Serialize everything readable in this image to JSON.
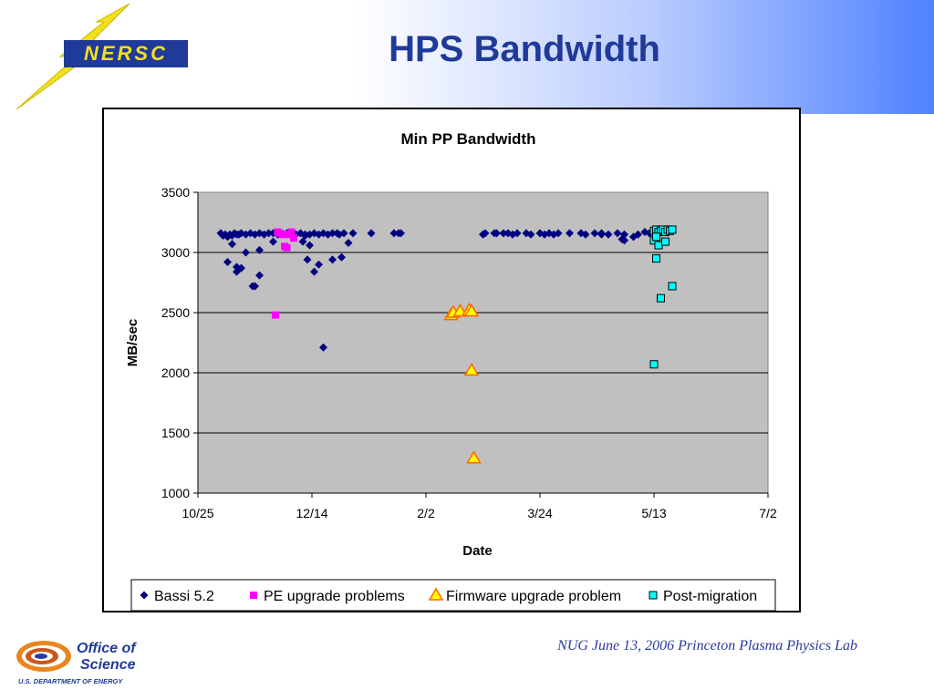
{
  "slide": {
    "title": "HPS Bandwidth",
    "footer": "NUG June 13, 2006 Princeton Plasma Physics Lab"
  },
  "logos": {
    "nersc": "NERSC",
    "office_line1": "Office of",
    "office_line2": "Science",
    "office_line3": "U.S. DEPARTMENT OF ENERGY"
  },
  "colors": {
    "title": "#1f3a99",
    "plot_bg": "#c0c0c0",
    "series": [
      "#000080",
      "#ff00ff",
      "#ffff00",
      "#00ffff"
    ]
  },
  "chart_data": {
    "type": "scatter",
    "title": "Min PP Bandwidth",
    "xlabel": "Date",
    "ylabel": "MB/sec",
    "ylim": [
      1000,
      3500
    ],
    "yticks": [
      1000,
      1500,
      2000,
      2500,
      3000,
      3500
    ],
    "xlim": [
      "10/25",
      "7/2"
    ],
    "xticks": [
      "10/25",
      "12/14",
      "2/2",
      "3/24",
      "5/13",
      "7/2"
    ],
    "grid": "horizontal",
    "legend_position": "bottom",
    "series": [
      {
        "name": "Bassi 5.2",
        "marker": "diamond",
        "x": [
          "11/4",
          "11/5",
          "11/6",
          "11/7",
          "11/8",
          "11/9",
          "11/10",
          "11/11",
          "11/12",
          "11/13",
          "11/15",
          "11/17",
          "11/19",
          "11/21",
          "11/23",
          "11/25",
          "11/27",
          "11/29",
          "12/1",
          "12/3",
          "12/5",
          "12/7",
          "12/9",
          "12/11",
          "12/13",
          "12/15",
          "12/17",
          "12/19",
          "12/21",
          "12/23",
          "12/25",
          "12/26",
          "12/28",
          "1/1",
          "1/9",
          "1/19",
          "1/21",
          "1/22",
          "2/27",
          "2/28",
          "3/4",
          "3/5",
          "3/8",
          "3/10",
          "3/12",
          "3/14",
          "3/18",
          "3/20",
          "3/24",
          "3/26",
          "3/28",
          "3/30",
          "4/1",
          "4/6",
          "4/11",
          "4/13",
          "4/17",
          "4/20",
          "4/23",
          "4/27",
          "4/29",
          "4/30",
          "5/4",
          "5/6",
          "5/9",
          "5/11",
          "11/7",
          "11/9",
          "11/11",
          "11/13",
          "11/18",
          "11/21",
          "12/10",
          "12/12",
          "12/15",
          "12/17",
          "12/23",
          "11/11",
          "11/15",
          "11/21",
          "11/27",
          "12/11",
          "12/13",
          "11/19",
          "12/19",
          "12/27",
          "12/30",
          "4/30",
          "4/20"
        ],
        "y": [
          3160,
          3140,
          3150,
          3130,
          3150,
          3140,
          3160,
          3150,
          3150,
          3160,
          3150,
          3160,
          3150,
          3160,
          3150,
          3160,
          3160,
          3150,
          3150,
          3160,
          3160,
          3150,
          3160,
          3150,
          3150,
          3160,
          3150,
          3160,
          3150,
          3160,
          3160,
          3150,
          3160,
          3160,
          3160,
          3160,
          3160,
          3160,
          3150,
          3160,
          3160,
          3160,
          3160,
          3160,
          3150,
          3160,
          3160,
          3150,
          3160,
          3150,
          3160,
          3150,
          3160,
          3160,
          3160,
          3150,
          3160,
          3160,
          3150,
          3160,
          3110,
          3150,
          3130,
          3150,
          3170,
          3160,
          2920,
          3070,
          2840,
          2870,
          2720,
          2810,
          3090,
          2940,
          2840,
          2900,
          2940,
          2880,
          3000,
          3020,
          3090,
          3140,
          3060,
          2720,
          2210,
          2960,
          3080,
          3100,
          3150
        ]
      },
      {
        "name": "PE upgrade problems",
        "marker": "square",
        "x": [
          "11/29",
          "11/30",
          "12/1",
          "12/2",
          "12/3",
          "12/4",
          "12/5",
          "12/6",
          "11/28"
        ],
        "y": [
          3170,
          3160,
          3150,
          3050,
          3040,
          3150,
          3170,
          3120,
          2480
        ]
      },
      {
        "name": "Firmware upgrade problem",
        "marker": "triangle",
        "x": [
          "2/13",
          "2/14",
          "2/17",
          "2/21",
          "2/22",
          "2/22",
          "2/23"
        ],
        "y": [
          2480,
          2500,
          2510,
          2520,
          2510,
          2020,
          1290
        ]
      },
      {
        "name": "Post-migration",
        "marker": "square",
        "x": [
          "5/13",
          "5/14",
          "5/15",
          "5/16",
          "5/17",
          "5/18",
          "5/19",
          "5/20",
          "5/21",
          "5/13",
          "5/14",
          "5/14",
          "5/15",
          "5/16",
          "5/18",
          "5/21",
          "5/13"
        ],
        "y": [
          3180,
          3190,
          3170,
          3180,
          3190,
          3170,
          3190,
          3180,
          3190,
          3100,
          3130,
          2950,
          3060,
          2620,
          3090,
          2720,
          2070
        ]
      }
    ]
  }
}
